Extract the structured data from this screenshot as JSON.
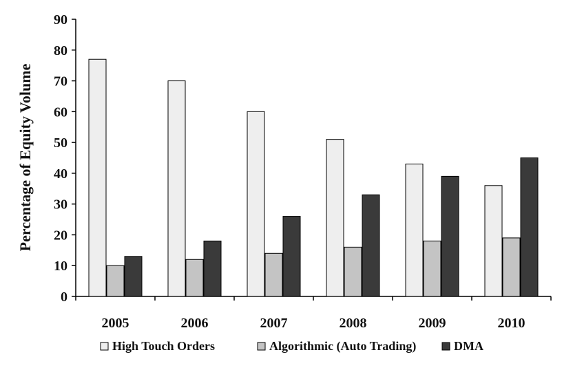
{
  "chart_data": {
    "type": "bar",
    "title": "",
    "xlabel": "",
    "ylabel": "Percentage of Equity Volume",
    "ylim": [
      0,
      90
    ],
    "yticks": [
      0,
      10,
      20,
      30,
      40,
      50,
      60,
      70,
      80,
      90
    ],
    "categories": [
      "2005",
      "2006",
      "2007",
      "2008",
      "2009",
      "2010"
    ],
    "series": [
      {
        "name": "High Touch Orders",
        "color": "#eeeeee",
        "values": [
          77,
          70,
          60,
          51,
          43,
          36
        ]
      },
      {
        "name": "Algorithmic (Auto Trading)",
        "color": "#c4c4c4",
        "values": [
          10,
          12,
          14,
          16,
          18,
          19
        ]
      },
      {
        "name": "DMA",
        "color": "#3a3a3a",
        "values": [
          13,
          18,
          26,
          33,
          39,
          45
        ]
      }
    ],
    "grid": false,
    "legend_position": "bottom"
  }
}
